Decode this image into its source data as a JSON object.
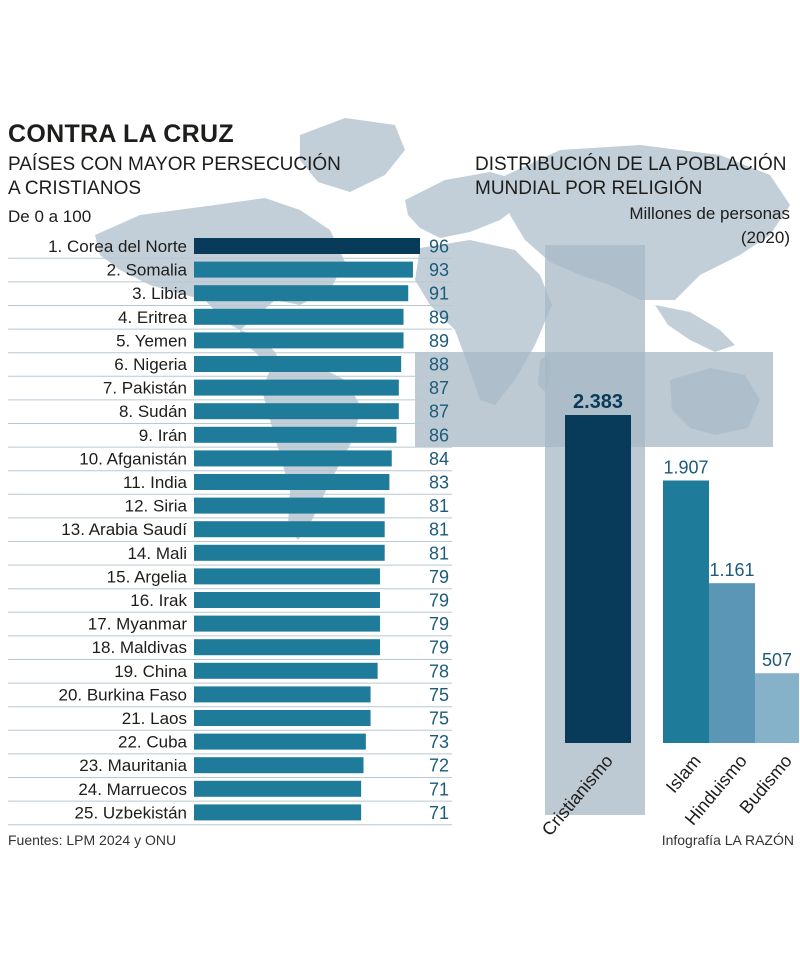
{
  "title": "CONTRA LA CRUZ",
  "left_subtitle": [
    "PAÍSES CON MAYOR PERSECUCIÓN",
    "A CRISTIANOS"
  ],
  "scale_note": "De 0 a 100",
  "right_subtitle": [
    "DISTRIBUCIÓN DE LA POBLACIÓN",
    "MUNDIAL POR RELIGIÓN"
  ],
  "units": [
    "Millones de personas",
    "(2020)"
  ],
  "sources": "Fuentes: LPM 2024 y ONU",
  "credit": "Infografía LA RAZÓN",
  "colors": {
    "bar_top": "#083a5a",
    "bar": "#1e7b9a",
    "value_text": "#1c5b7a",
    "cristianismo": "#083a5a",
    "islam": "#1e7b9a",
    "hinduismo": "#5b96b6",
    "budismo": "#86b2c9",
    "map": "#c2cfd9",
    "cross": "#a7b8c5"
  },
  "chart_data": [
    {
      "type": "bar",
      "orientation": "horizontal",
      "title": "PAÍSES CON MAYOR PERSECUCIÓN A CRISTIANOS",
      "scale": "De 0 a 100",
      "xlim": [
        0,
        100
      ],
      "categories": [
        "1. Corea del Norte",
        "2. Somalia",
        "3. Libia",
        "4. Eritrea",
        "5. Yemen",
        "6. Nigeria",
        "7. Pakistán",
        "8. Sudán",
        "9. Irán",
        "10. Afganistán",
        "11. India",
        "12. Siria",
        "13. Arabia Saudí",
        "14. Mali",
        "15. Argelia",
        "16. Irak",
        "17. Myanmar",
        "18. Maldivas",
        "19. China",
        "20. Burkina Faso",
        "21. Laos",
        "22. Cuba",
        "23. Mauritania",
        "24. Marruecos",
        "25. Uzbekistán"
      ],
      "values": [
        96,
        93,
        91,
        89,
        89,
        88,
        87,
        87,
        86,
        84,
        83,
        81,
        81,
        81,
        79,
        79,
        79,
        79,
        78,
        75,
        75,
        73,
        72,
        71,
        71
      ],
      "value_labels": [
        "96",
        "93",
        "91",
        "89",
        "89",
        "88",
        "87",
        "87",
        "86",
        "84",
        "83",
        "81",
        "81",
        "81",
        "79",
        "79",
        "79",
        "79",
        "78",
        "75",
        "75",
        "73",
        "72",
        "71",
        "71"
      ]
    },
    {
      "type": "bar",
      "orientation": "vertical",
      "title": "DISTRIBUCIÓN DE LA POBLACIÓN MUNDIAL POR RELIGIÓN",
      "units": "Millones de personas (2020)",
      "categories": [
        "Cristianismo",
        "Islam",
        "Hinduismo",
        "Budismo"
      ],
      "values": [
        2383,
        1907,
        1161,
        507
      ],
      "value_labels": [
        "2.383",
        "1.907",
        "1.161",
        "507"
      ]
    }
  ]
}
